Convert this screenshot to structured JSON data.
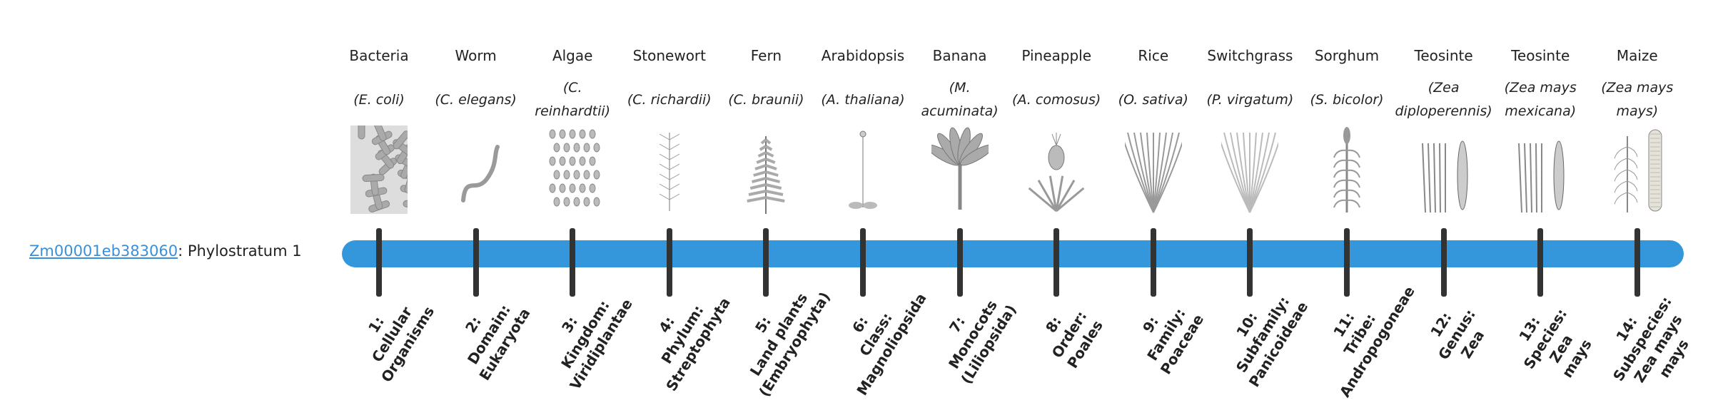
{
  "gene": {
    "id_link": "Zm00001eb383060",
    "suffix": ": Phylostratum 1"
  },
  "bar_color": "#3597db",
  "strata": [
    {
      "common": "Bacteria",
      "scientific": "(E. coli)",
      "icon": "bacteria-icon",
      "rank": [
        "1:",
        "Cellular",
        "Organisms"
      ]
    },
    {
      "common": "Worm",
      "scientific": "(C. elegans)",
      "icon": "worm-icon",
      "rank": [
        "2:",
        "Domain:",
        "Eukaryota"
      ]
    },
    {
      "common": "Algae",
      "scientific": "(C. reinhardtii)",
      "icon": "algae-icon",
      "rank": [
        "3:",
        "Kingdom:",
        "Viridiplantae"
      ]
    },
    {
      "common": "Stonewort",
      "scientific": "(C. richardii)",
      "icon": "stonewort-icon",
      "rank": [
        "4:",
        "Phylum:",
        "Streptophyta"
      ]
    },
    {
      "common": "Fern",
      "scientific": "(C. braunii)",
      "icon": "fern-icon",
      "rank": [
        "5:",
        "Land plants",
        "(Embryophyta)"
      ]
    },
    {
      "common": "Arabidopsis",
      "scientific": "(A. thaliana)",
      "icon": "arabidopsis-icon",
      "rank": [
        "6:",
        "Class:",
        "Magnoliopsida"
      ]
    },
    {
      "common": "Banana",
      "scientific": "(M. acuminata)",
      "icon": "banana-icon",
      "rank": [
        "7:",
        "Monocots",
        "(Liliopsida)"
      ]
    },
    {
      "common": "Pineapple",
      "scientific": "(A. comosus)",
      "icon": "pineapple-icon",
      "rank": [
        "8:",
        "Order:",
        "Poales"
      ]
    },
    {
      "common": "Rice",
      "scientific": "(O. sativa)",
      "icon": "rice-icon",
      "rank": [
        "9:",
        "Family:",
        "Poaceae"
      ]
    },
    {
      "common": "Switchgrass",
      "scientific": "(P. virgatum)",
      "icon": "switchgrass-icon",
      "rank": [
        "10:",
        "Subfamily:",
        "Panicoideae"
      ]
    },
    {
      "common": "Sorghum",
      "scientific": "(S. bicolor)",
      "icon": "sorghum-icon",
      "rank": [
        "11:",
        "Tribe:",
        "Andropogoneae"
      ]
    },
    {
      "common": "Teosinte",
      "scientific": "(Zea diploperennis)",
      "icon": "teosinte-icon",
      "rank": [
        "12:",
        "Genus:",
        "Zea"
      ]
    },
    {
      "common": "Teosinte",
      "scientific": "(Zea mays mexicana)",
      "icon": "teosinte-icon",
      "rank": [
        "13:",
        "Species:",
        "Zea",
        "mays"
      ]
    },
    {
      "common": "Maize",
      "scientific": "(Zea mays mays)",
      "icon": "maize-icon",
      "rank": [
        "14:",
        "Subspecies:",
        "Zea mays",
        "mays"
      ]
    }
  ]
}
